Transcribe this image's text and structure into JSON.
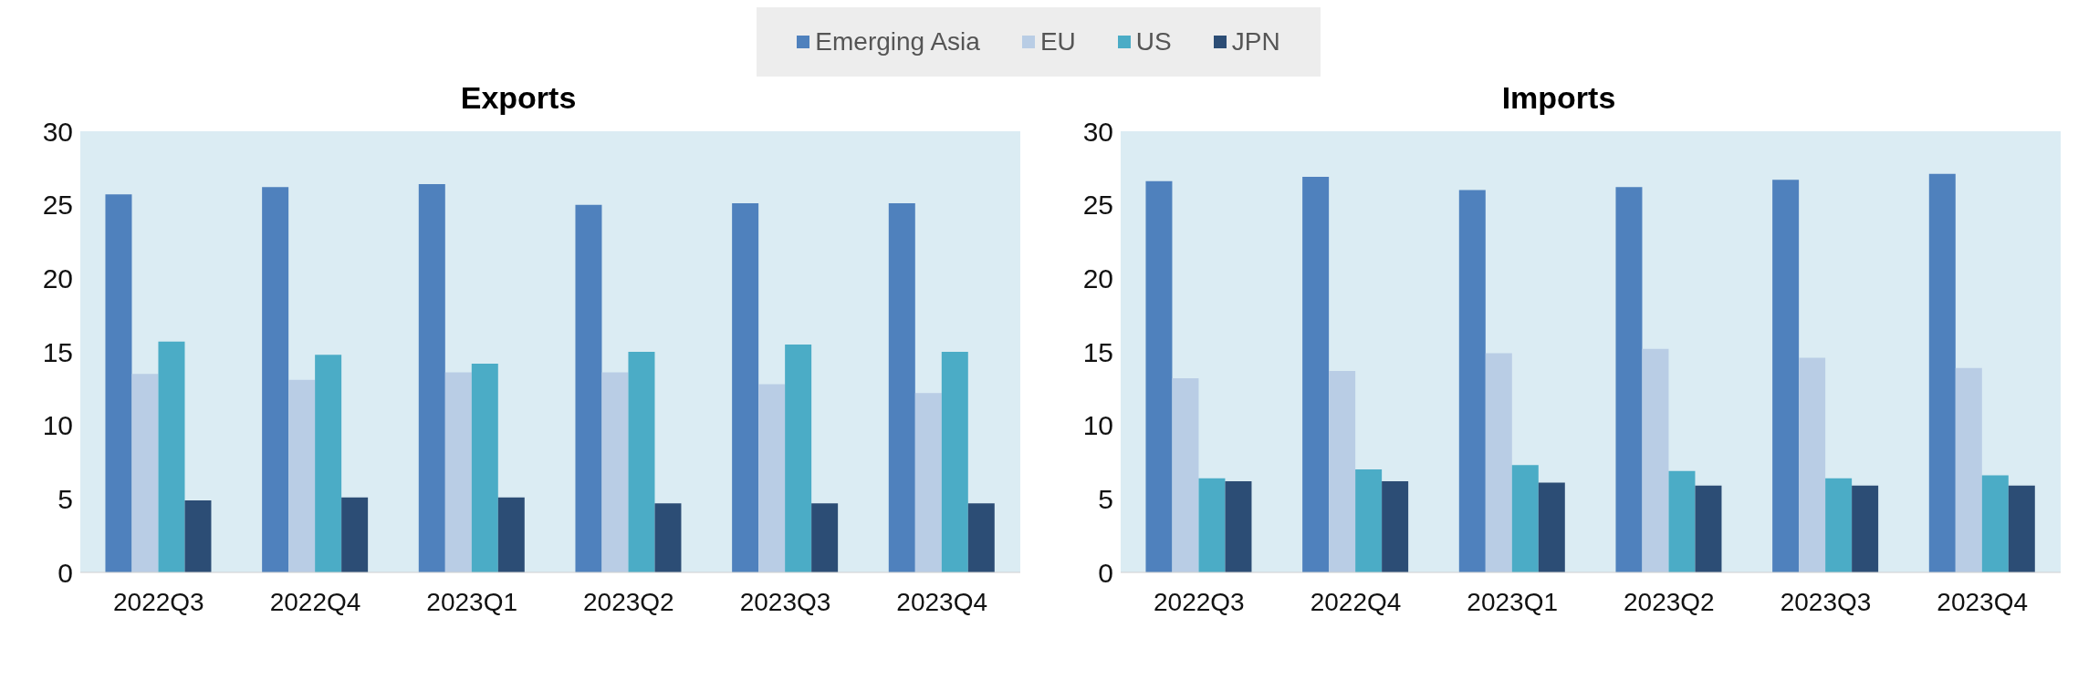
{
  "chart_data": [
    {
      "type": "bar",
      "title": "Exports",
      "categories": [
        "2022Q3",
        "2022Q4",
        "2023Q1",
        "2023Q2",
        "2023Q3",
        "2023Q4"
      ],
      "series": [
        {
          "name": "Emerging Asia",
          "color": "#4f81bd",
          "values": [
            25.7,
            26.2,
            26.4,
            25.0,
            25.1,
            25.1
          ]
        },
        {
          "name": "EU",
          "color": "#b9cde5",
          "values": [
            13.5,
            13.1,
            13.6,
            13.6,
            12.8,
            12.2
          ]
        },
        {
          "name": "US",
          "color": "#4bacc6",
          "values": [
            15.7,
            14.8,
            14.2,
            15.0,
            15.5,
            15.0
          ]
        },
        {
          "name": "JPN",
          "color": "#2c4d75",
          "values": [
            4.9,
            5.1,
            5.1,
            4.7,
            4.7,
            4.7
          ]
        }
      ],
      "ylim": [
        0,
        30
      ],
      "yticks": [
        0,
        5,
        10,
        15,
        20,
        25,
        30
      ],
      "legend": "top"
    },
    {
      "type": "bar",
      "title": "Imports",
      "categories": [
        "2022Q3",
        "2022Q4",
        "2023Q1",
        "2023Q2",
        "2023Q3",
        "2023Q4"
      ],
      "series": [
        {
          "color": "#4f81bd",
          "values": [
            26.6,
            26.9,
            26.0,
            26.2,
            26.7,
            27.1
          ]
        },
        {
          "color": "#b9cde5",
          "values": [
            13.2,
            13.7,
            14.9,
            15.2,
            14.6,
            13.9
          ]
        },
        {
          "color": "#4bacc6",
          "values": [
            6.4,
            7.0,
            7.3,
            6.9,
            6.4,
            6.6
          ]
        },
        {
          "color": "#2c4d75",
          "values": [
            6.2,
            6.2,
            6.1,
            5.9,
            5.9,
            5.9
          ]
        }
      ],
      "ylim": [
        0,
        30
      ],
      "yticks": [
        0,
        5,
        10,
        15,
        20,
        25,
        30
      ]
    }
  ]
}
